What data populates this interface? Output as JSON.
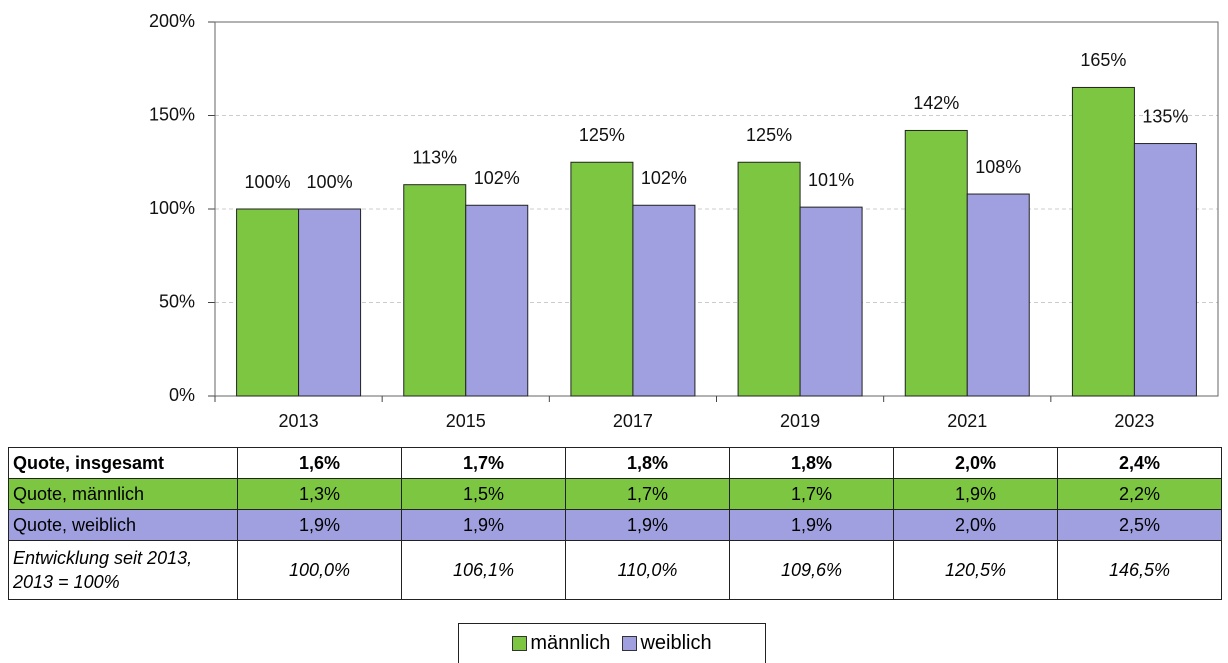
{
  "chart_data": {
    "type": "bar",
    "categories": [
      "2013",
      "2015",
      "2017",
      "2019",
      "2021",
      "2023"
    ],
    "series": [
      {
        "name": "männlich",
        "color": "#7dc642",
        "values": [
          100,
          113,
          125,
          125,
          142,
          165
        ],
        "value_labels": [
          "100%",
          "113%",
          "125%",
          "125%",
          "142%",
          "165%"
        ]
      },
      {
        "name": "weiblich",
        "color": "#a0a0e0",
        "values": [
          100,
          102,
          102,
          101,
          108,
          135
        ],
        "value_labels": [
          "100%",
          "102%",
          "102%",
          "101%",
          "108%",
          "135%"
        ]
      }
    ],
    "ylim": [
      0,
      200
    ],
    "yticks": [
      {
        "value": 0,
        "label": "0%"
      },
      {
        "value": 50,
        "label": "50%"
      },
      {
        "value": 100,
        "label": "100%"
      },
      {
        "value": 150,
        "label": "150%"
      },
      {
        "value": 200,
        "label": "200%"
      }
    ],
    "grid": true,
    "legend": "bottom"
  },
  "table": {
    "rows": [
      {
        "label": "Quote, insgesamt",
        "cells": [
          "1,6%",
          "1,7%",
          "1,8%",
          "1,8%",
          "2,0%",
          "2,4%"
        ]
      },
      {
        "label": "Quote, männlich",
        "cells": [
          "1,3%",
          "1,5%",
          "1,7%",
          "1,7%",
          "1,9%",
          "2,2%"
        ]
      },
      {
        "label": "Quote, weiblich",
        "cells": [
          "1,9%",
          "1,9%",
          "1,9%",
          "1,9%",
          "2,0%",
          "2,5%"
        ]
      },
      {
        "label": "Entwicklung seit 2013, 2013 = 100%",
        "cells": [
          "100,0%",
          "106,1%",
          "110,0%",
          "109,6%",
          "120,5%",
          "146,5%"
        ]
      }
    ]
  }
}
